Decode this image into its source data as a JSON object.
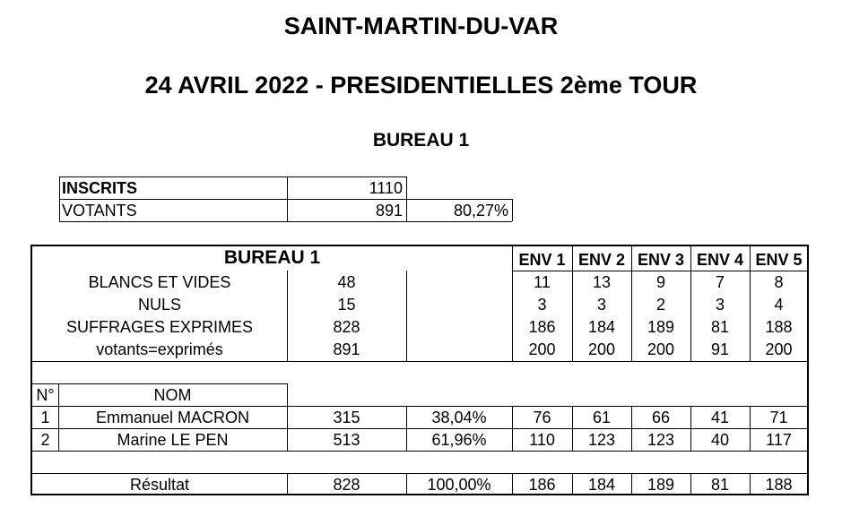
{
  "header": {
    "commune": "SAINT-MARTIN-DU-VAR",
    "election": "24 AVRIL 2022 - PRESIDENTIELLES 2ème  TOUR",
    "bureau": "BUREAU 1"
  },
  "summary": {
    "inscrits_label": "INSCRITS",
    "inscrits_value": "1110",
    "votants_label": "VOTANTS",
    "votants_value": "891",
    "votants_pct": "80,27%"
  },
  "table": {
    "title": "BUREAU 1",
    "env_headers": [
      "ENV 1",
      "ENV 2",
      "ENV 3",
      "ENV 4",
      "ENV 5"
    ],
    "rows": [
      {
        "label": "BLANCS ET VIDES",
        "total": "48",
        "env": [
          "11",
          "13",
          "9",
          "7",
          "8"
        ]
      },
      {
        "label": "NULS",
        "total": "15",
        "env": [
          "3",
          "3",
          "2",
          "3",
          "4"
        ]
      },
      {
        "label": "SUFFRAGES EXPRIMES",
        "total": "828",
        "env": [
          "186",
          "184",
          "189",
          "81",
          "188"
        ]
      },
      {
        "label": "votants=exprimés",
        "total": "891",
        "env": [
          "200",
          "200",
          "200",
          "91",
          "200"
        ]
      }
    ],
    "num_header": "N°",
    "name_header": "NOM",
    "candidates": [
      {
        "num": "1",
        "name": "Emmanuel MACRON",
        "votes": "315",
        "pct": "38,04%",
        "env": [
          "76",
          "61",
          "66",
          "41",
          "71"
        ]
      },
      {
        "num": "2",
        "name": "Marine LE PEN",
        "votes": "513",
        "pct": "61,96%",
        "env": [
          "110",
          "123",
          "123",
          "40",
          "117"
        ]
      }
    ],
    "result": {
      "label": "Résultat",
      "votes": "828",
      "pct": "100,00%",
      "env": [
        "186",
        "184",
        "189",
        "81",
        "188"
      ]
    }
  }
}
